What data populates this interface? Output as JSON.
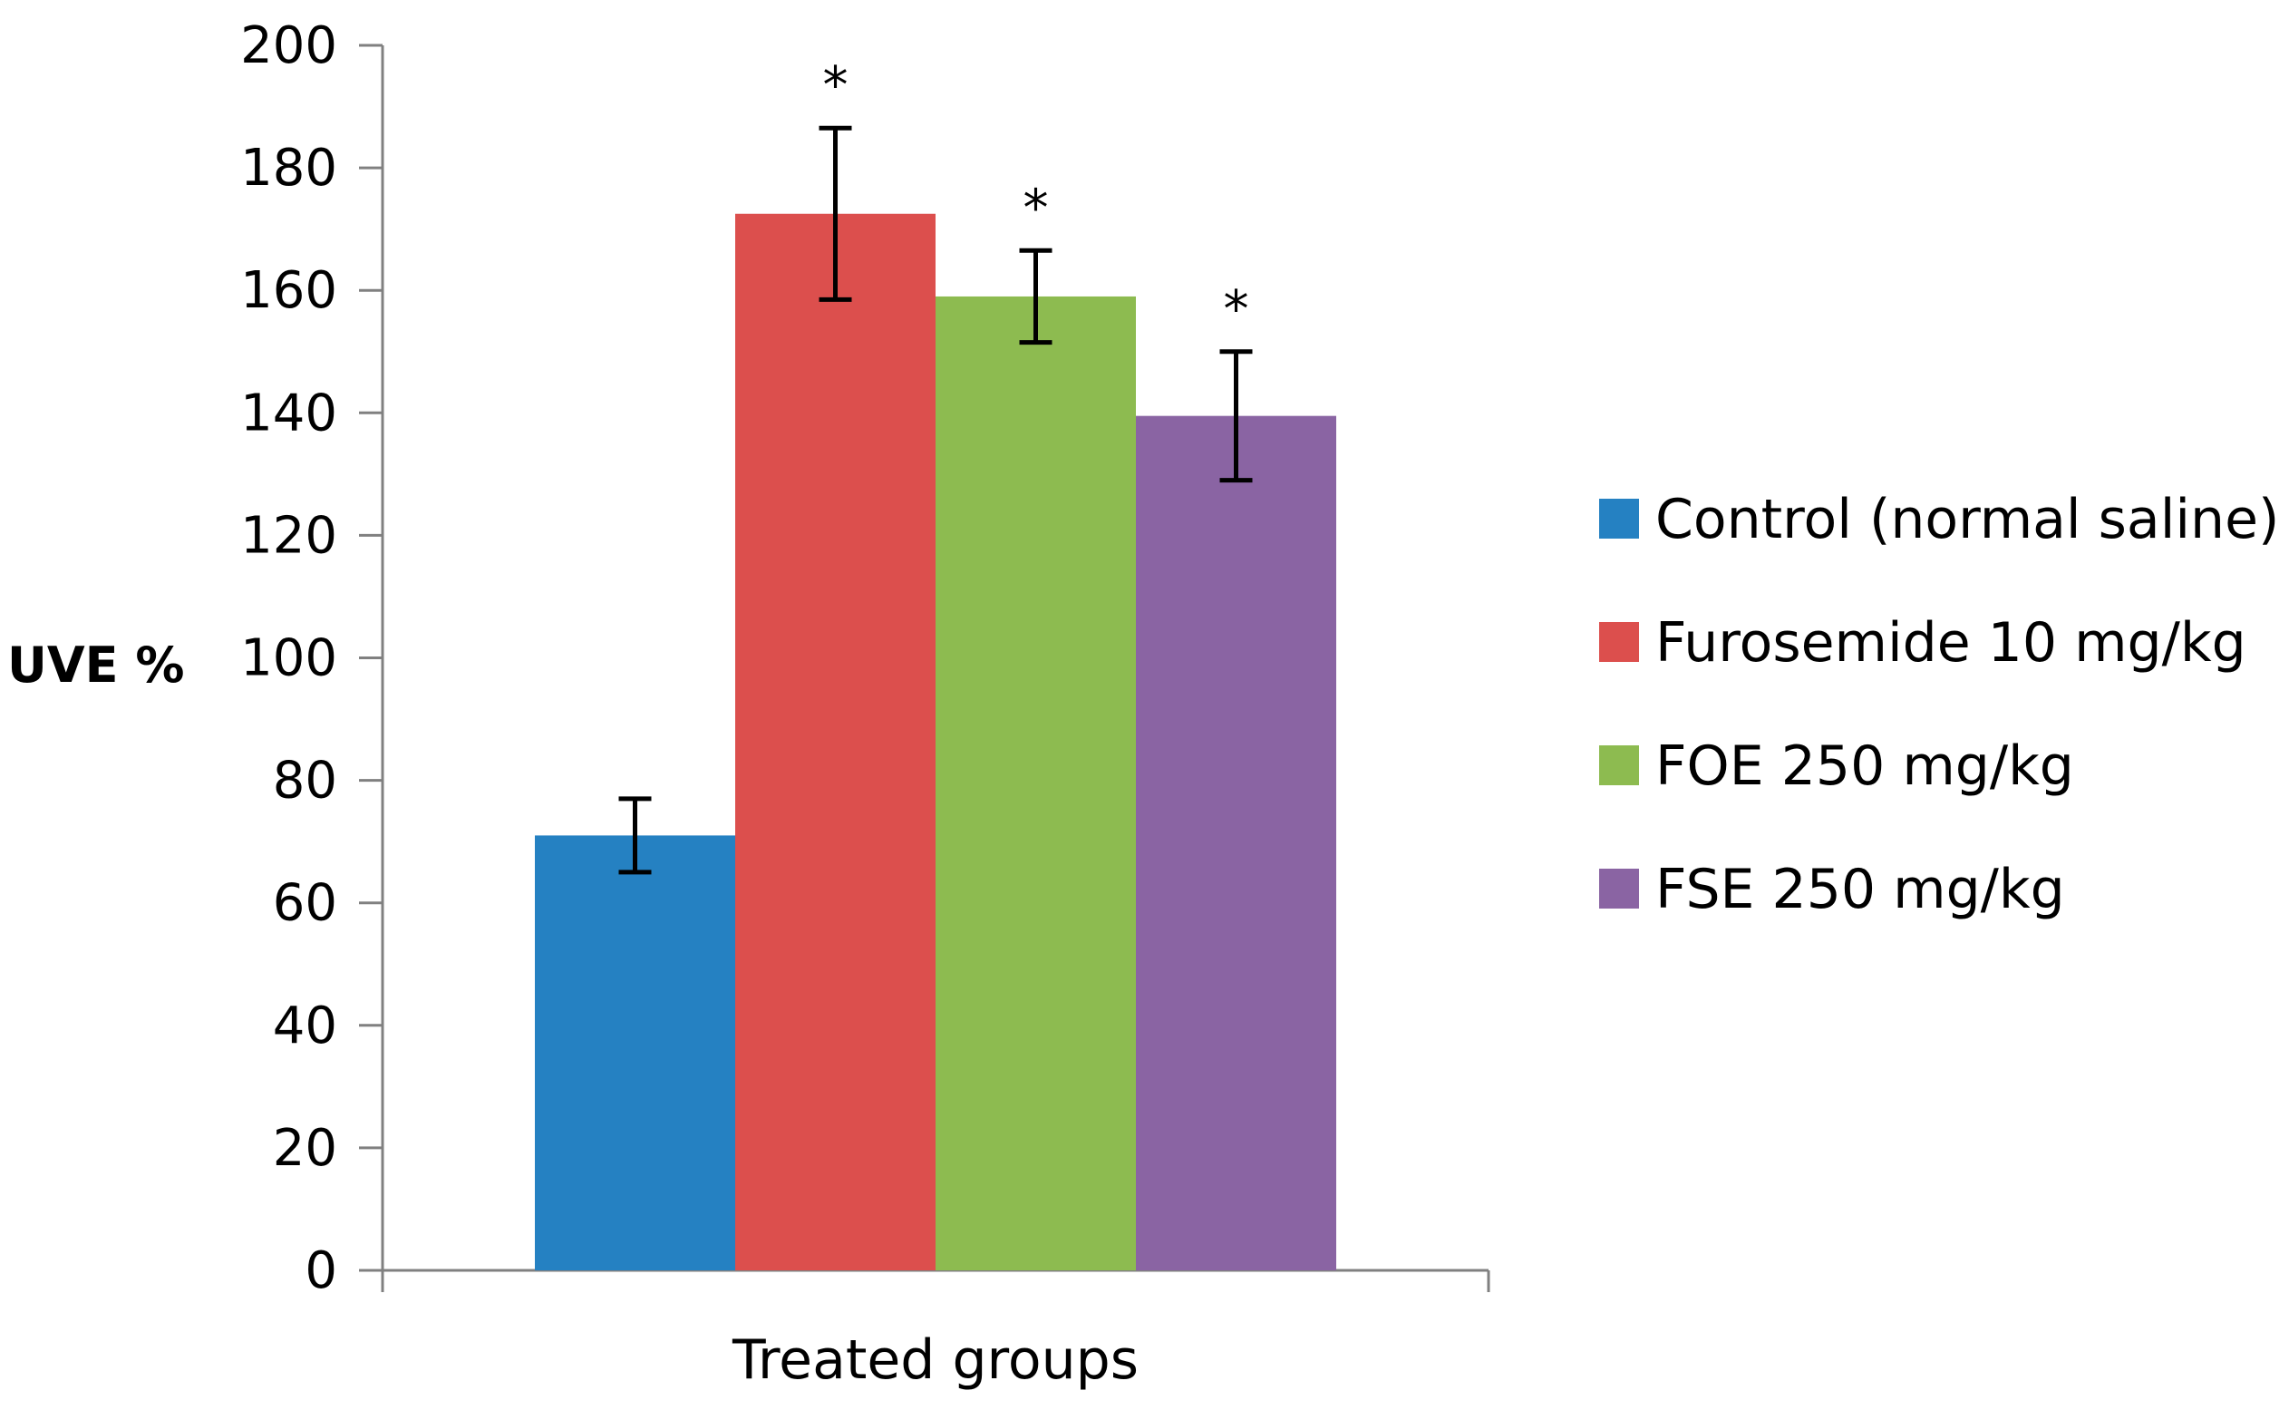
{
  "chart_data": {
    "type": "bar",
    "title": "",
    "xlabel": "Treated groups",
    "ylabel": "UVE %",
    "ylim": [
      0,
      200
    ],
    "yticks": [
      0,
      20,
      40,
      60,
      80,
      100,
      120,
      140,
      160,
      180,
      200
    ],
    "ytick_labels": [
      "0",
      "20",
      "40",
      "60",
      "80",
      "100",
      "120",
      "140",
      "160",
      "180",
      "200"
    ],
    "grid": false,
    "legend_position": "right",
    "categories": [
      "Treated groups"
    ],
    "series": [
      {
        "name": "Control (normal saline)",
        "values": [
          71
        ],
        "error": [
          6
        ],
        "color": "#2581C2",
        "significance": ""
      },
      {
        "name": "Furosemide 10 mg/kg",
        "values": [
          172.5
        ],
        "error": [
          14
        ],
        "color": "#DC4F4D",
        "significance": "*"
      },
      {
        "name": "FOE 250 mg/kg",
        "values": [
          159
        ],
        "error": [
          7.5
        ],
        "color": "#8DBB50",
        "significance": "*"
      },
      {
        "name": "FSE 250 mg/kg",
        "values": [
          139.5
        ],
        "error": [
          10.5
        ],
        "color": "#8A64A3",
        "significance": "*"
      }
    ]
  }
}
